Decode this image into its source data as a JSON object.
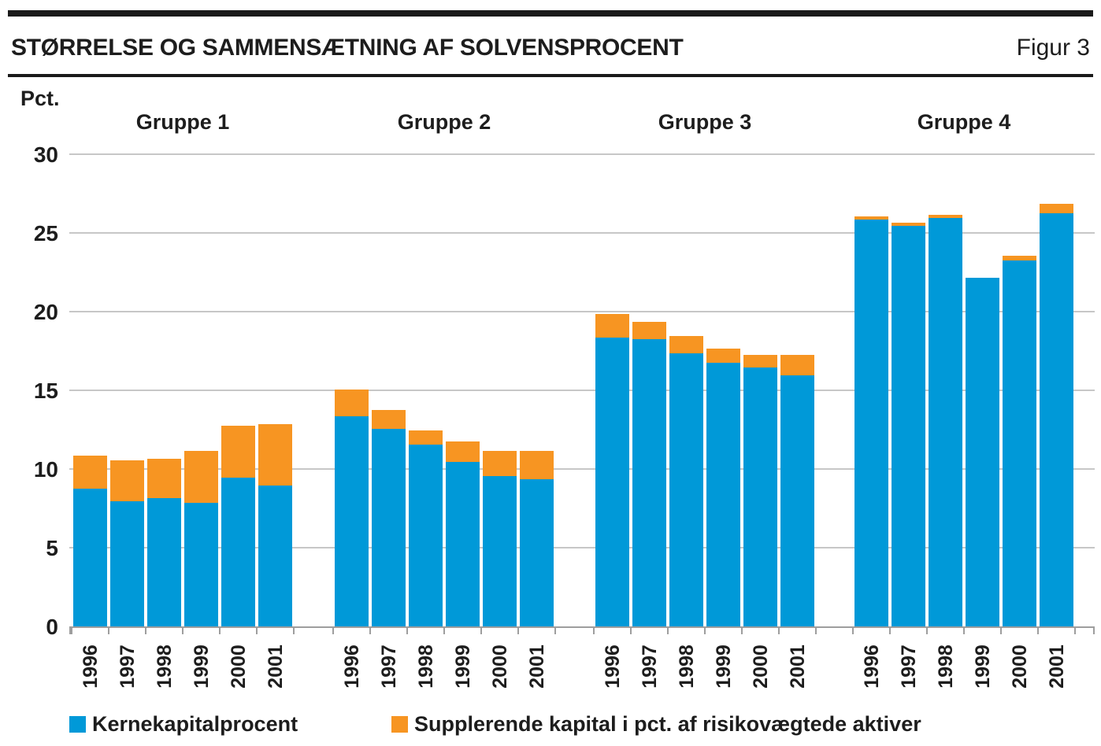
{
  "header": {
    "title": "STØRRELSE OG SAMMENSÆTNING AF SOLVENSPROCENT",
    "figure_label": "Figur 3"
  },
  "chart_data": {
    "type": "bar",
    "stacked": true,
    "unit_label": "Pct.",
    "ylim": [
      0,
      30
    ],
    "yticks": [
      0,
      5,
      10,
      15,
      20,
      25,
      30
    ],
    "grid": "horizontal",
    "categories": [
      "1996",
      "1997",
      "1998",
      "1999",
      "2000",
      "2001"
    ],
    "series_meta": [
      {
        "name": "Kernekapitalprocent",
        "color": "#0099d8"
      },
      {
        "name": "Supplerende kapital i pct. af risikovægtede aktiver",
        "color": "#f79522"
      }
    ],
    "groups": [
      {
        "label": "Gruppe 1",
        "kernekapital": [
          8.8,
          8.0,
          8.2,
          7.9,
          9.5,
          9.0
        ],
        "supplerende": [
          2.1,
          2.6,
          2.5,
          3.3,
          3.3,
          3.9
        ]
      },
      {
        "label": "Gruppe 2",
        "kernekapital": [
          13.4,
          12.6,
          11.6,
          10.5,
          9.6,
          9.4
        ],
        "supplerende": [
          1.7,
          1.2,
          0.9,
          1.3,
          1.6,
          1.8
        ]
      },
      {
        "label": "Gruppe 3",
        "kernekapital": [
          18.4,
          18.3,
          17.4,
          16.8,
          16.5,
          16.0
        ],
        "supplerende": [
          1.5,
          1.1,
          1.1,
          0.9,
          0.8,
          1.3
        ]
      },
      {
        "label": "Gruppe 4",
        "kernekapital": [
          25.9,
          25.5,
          26.0,
          22.2,
          23.3,
          26.3
        ],
        "supplerende": [
          0.2,
          0.2,
          0.2,
          0.0,
          0.3,
          0.6
        ]
      }
    ],
    "legend_position": "bottom"
  },
  "colors": {
    "kernekapital_blue": "#0099d8",
    "supplerende_orange": "#f79522",
    "gridline_gray": "#c7c7c7",
    "axis_gray": "#9e9e9e"
  }
}
